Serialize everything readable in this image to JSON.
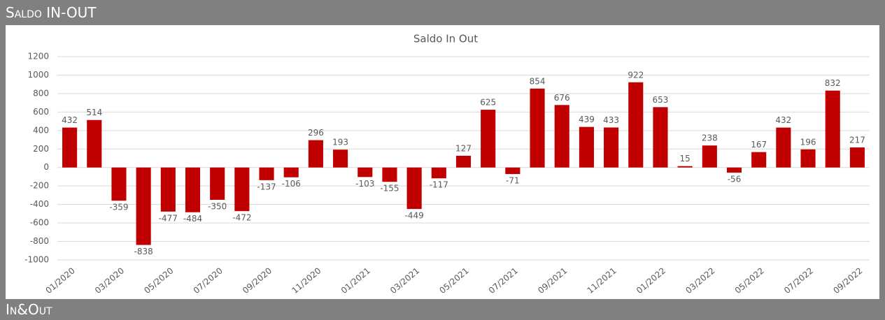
{
  "header": {
    "title": "Saldo IN-OUT"
  },
  "footer": {
    "title": "In&Out"
  },
  "chart_data": {
    "type": "bar",
    "title": "Saldo In Out",
    "color": "#c00000",
    "grid": true,
    "categories": [
      "01/2020",
      null,
      "03/2020",
      null,
      "05/2020",
      null,
      "07/2020",
      null,
      "09/2020",
      null,
      "11/2020",
      null,
      "01/2021",
      null,
      "03/2021",
      null,
      "05/2021",
      null,
      "07/2021",
      null,
      "09/2021",
      null,
      "11/2021",
      null,
      "01/2022",
      null,
      "03/2022",
      null,
      "05/2022",
      null,
      "07/2022",
      null,
      "09/2022"
    ],
    "values": [
      432,
      514,
      -359,
      -838,
      -477,
      -484,
      -350,
      -472,
      -137,
      -106,
      296,
      193,
      -103,
      -155,
      -449,
      -117,
      127,
      625,
      -71,
      854,
      676,
      439,
      433,
      922,
      653,
      15,
      238,
      -56,
      167,
      432,
      196,
      832,
      217
    ],
    "ylim": [
      -1000,
      1200
    ],
    "yticks": [
      -1000,
      -800,
      -600,
      -400,
      -200,
      0,
      200,
      400,
      600,
      800,
      1000,
      1200
    ]
  }
}
